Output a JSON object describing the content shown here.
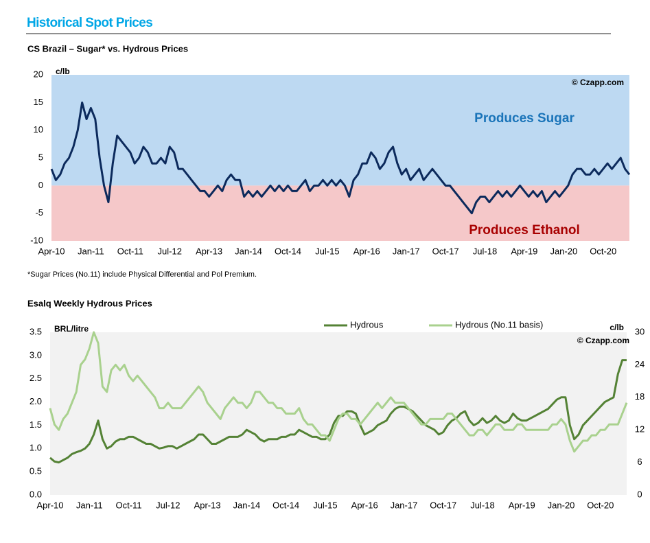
{
  "header": {
    "title": "Historical Spot Prices"
  },
  "footnote": "*Sugar Prices (No.11) include Physical Differential and Pol Premium.",
  "chart_data": [
    {
      "type": "line",
      "title": "CS Brazil – Sugar* vs. Hydrous Prices",
      "y_label": "c/lb",
      "watermark": "© Czapp.com",
      "annotations": [
        "Produces Sugar",
        "Produces Ethanol"
      ],
      "positive_color": "#bdd9f2",
      "negative_color": "#f5c8c9",
      "x": [
        "Apr-10",
        "May-10",
        "Jun-10",
        "Jul-10",
        "Aug-10",
        "Sep-10",
        "Oct-10",
        "Nov-10",
        "Dec-10",
        "Jan-11",
        "Feb-11",
        "Mar-11",
        "Apr-11",
        "May-11",
        "Jun-11",
        "Jul-11",
        "Aug-11",
        "Sep-11",
        "Oct-11",
        "Nov-11",
        "Dec-11",
        "Jan-12",
        "Feb-12",
        "Mar-12",
        "Apr-12",
        "May-12",
        "Jun-12",
        "Jul-12",
        "Aug-12",
        "Sep-12",
        "Oct-12",
        "Nov-12",
        "Dec-12",
        "Jan-13",
        "Feb-13",
        "Mar-13",
        "Apr-13",
        "May-13",
        "Jun-13",
        "Jul-13",
        "Aug-13",
        "Sep-13",
        "Oct-13",
        "Nov-13",
        "Dec-13",
        "Jan-14",
        "Feb-14",
        "Mar-14",
        "Apr-14",
        "May-14",
        "Jun-14",
        "Jul-14",
        "Aug-14",
        "Sep-14",
        "Oct-14",
        "Nov-14",
        "Dec-14",
        "Jan-15",
        "Feb-15",
        "Mar-15",
        "Apr-15",
        "May-15",
        "Jun-15",
        "Jul-15",
        "Aug-15",
        "Sep-15",
        "Oct-15",
        "Nov-15",
        "Dec-15",
        "Jan-16",
        "Feb-16",
        "Mar-16",
        "Apr-16",
        "May-16",
        "Jun-16",
        "Jul-16",
        "Aug-16",
        "Sep-16",
        "Oct-16",
        "Nov-16",
        "Dec-16",
        "Jan-17",
        "Feb-17",
        "Mar-17",
        "Apr-17",
        "May-17",
        "Jun-17",
        "Jul-17",
        "Aug-17",
        "Sep-17",
        "Oct-17",
        "Nov-17",
        "Dec-17",
        "Jan-18",
        "Feb-18",
        "Mar-18",
        "Apr-18",
        "May-18",
        "Jun-18",
        "Jul-18",
        "Aug-18",
        "Sep-18",
        "Oct-18",
        "Nov-18",
        "Dec-18",
        "Jan-19",
        "Feb-19",
        "Mar-19",
        "Apr-19",
        "May-19",
        "Jun-19",
        "Jul-19",
        "Aug-19",
        "Sep-19",
        "Oct-19",
        "Nov-19",
        "Dec-19",
        "Jan-20",
        "Feb-20",
        "Mar-20",
        "Apr-20",
        "May-20",
        "Jun-20",
        "Jul-20",
        "Aug-20",
        "Sep-20",
        "Oct-20",
        "Nov-20",
        "Dec-20",
        "Jan-21",
        "Feb-21",
        "Mar-21",
        "Apr-21"
      ],
      "values": [
        3,
        1,
        2,
        4,
        5,
        7,
        10,
        15,
        12,
        14,
        12,
        5,
        0,
        -3,
        4,
        9,
        8,
        7,
        6,
        4,
        5,
        7,
        6,
        4,
        4,
        5,
        4,
        7,
        6,
        3,
        3,
        2,
        1,
        0,
        -1,
        -1,
        -2,
        -1,
        0,
        -1,
        1,
        2,
        1,
        1,
        -2,
        -1,
        -2,
        -1,
        -2,
        -1,
        0,
        -1,
        0,
        -1,
        0,
        -1,
        -1,
        0,
        1,
        -1,
        0,
        0,
        1,
        0,
        1,
        0,
        1,
        0,
        -2,
        1,
        2,
        4,
        4,
        6,
        5,
        3,
        4,
        6,
        7,
        4,
        2,
        3,
        1,
        2,
        3,
        1,
        2,
        3,
        2,
        1,
        0,
        0,
        -1,
        -2,
        -3,
        -4,
        -5,
        -3,
        -2,
        -2,
        -3,
        -2,
        -1,
        -2,
        -1,
        -2,
        -1,
        0,
        -1,
        -2,
        -1,
        -2,
        -1,
        -3,
        -2,
        -1,
        -2,
        -1,
        0,
        2,
        3,
        3,
        2,
        2,
        3,
        2,
        3,
        4,
        3,
        4,
        5,
        3,
        2
      ],
      "color": "#0c2a5c",
      "xlim": [
        "Apr-10",
        "Apr-21"
      ],
      "xticks": [
        "Apr-10",
        "Jan-11",
        "Oct-11",
        "Jul-12",
        "Apr-13",
        "Jan-14",
        "Oct-14",
        "Jul-15",
        "Apr-16",
        "Jan-17",
        "Oct-17",
        "Jul-18",
        "Apr-19",
        "Jan-20",
        "Oct-20"
      ],
      "ylim": [
        -10,
        20
      ],
      "yticks": [
        -10,
        -5,
        0,
        5,
        10,
        15,
        20
      ]
    },
    {
      "type": "line",
      "title": "Esalq Weekly Hydrous Prices",
      "y_label": "BRL/litre",
      "y2_label": "c/lb",
      "watermark": "© Czapp.com",
      "background": "#f2f2f2",
      "x": [
        "Apr-10",
        "May-10",
        "Jun-10",
        "Jul-10",
        "Aug-10",
        "Sep-10",
        "Oct-10",
        "Nov-10",
        "Dec-10",
        "Jan-11",
        "Feb-11",
        "Mar-11",
        "Apr-11",
        "May-11",
        "Jun-11",
        "Jul-11",
        "Aug-11",
        "Sep-11",
        "Oct-11",
        "Nov-11",
        "Dec-11",
        "Jan-12",
        "Feb-12",
        "Mar-12",
        "Apr-12",
        "May-12",
        "Jun-12",
        "Jul-12",
        "Aug-12",
        "Sep-12",
        "Oct-12",
        "Nov-12",
        "Dec-12",
        "Jan-13",
        "Feb-13",
        "Mar-13",
        "Apr-13",
        "May-13",
        "Jun-13",
        "Jul-13",
        "Aug-13",
        "Sep-13",
        "Oct-13",
        "Nov-13",
        "Dec-13",
        "Jan-14",
        "Feb-14",
        "Mar-14",
        "Apr-14",
        "May-14",
        "Jun-14",
        "Jul-14",
        "Aug-14",
        "Sep-14",
        "Oct-14",
        "Nov-14",
        "Dec-14",
        "Jan-15",
        "Feb-15",
        "Mar-15",
        "Apr-15",
        "May-15",
        "Jun-15",
        "Jul-15",
        "Aug-15",
        "Sep-15",
        "Oct-15",
        "Nov-15",
        "Dec-15",
        "Jan-16",
        "Feb-16",
        "Mar-16",
        "Apr-16",
        "May-16",
        "Jun-16",
        "Jul-16",
        "Aug-16",
        "Sep-16",
        "Oct-16",
        "Nov-16",
        "Dec-16",
        "Jan-17",
        "Feb-17",
        "Mar-17",
        "Apr-17",
        "May-17",
        "Jun-17",
        "Jul-17",
        "Aug-17",
        "Sep-17",
        "Oct-17",
        "Nov-17",
        "Dec-17",
        "Jan-18",
        "Feb-18",
        "Mar-18",
        "Apr-18",
        "May-18",
        "Jun-18",
        "Jul-18",
        "Aug-18",
        "Sep-18",
        "Oct-18",
        "Nov-18",
        "Dec-18",
        "Jan-19",
        "Feb-19",
        "Mar-19",
        "Apr-19",
        "May-19",
        "Jun-19",
        "Jul-19",
        "Aug-19",
        "Sep-19",
        "Oct-19",
        "Nov-19",
        "Dec-19",
        "Jan-20",
        "Feb-20",
        "Mar-20",
        "Apr-20",
        "May-20",
        "Jun-20",
        "Jul-20",
        "Aug-20",
        "Sep-20",
        "Oct-20",
        "Nov-20",
        "Dec-20",
        "Jan-21",
        "Feb-21",
        "Mar-21",
        "Apr-21"
      ],
      "series": [
        {
          "name": "Hydrous",
          "color": "#548235",
          "values": [
            0.8,
            0.72,
            0.7,
            0.75,
            0.8,
            0.88,
            0.92,
            0.95,
            1.0,
            1.1,
            1.3,
            1.6,
            1.2,
            1.0,
            1.05,
            1.15,
            1.2,
            1.2,
            1.25,
            1.25,
            1.2,
            1.15,
            1.1,
            1.1,
            1.05,
            1.0,
            1.02,
            1.05,
            1.05,
            1.0,
            1.05,
            1.1,
            1.15,
            1.2,
            1.3,
            1.3,
            1.2,
            1.1,
            1.1,
            1.15,
            1.2,
            1.25,
            1.25,
            1.25,
            1.3,
            1.4,
            1.35,
            1.3,
            1.2,
            1.15,
            1.2,
            1.2,
            1.2,
            1.25,
            1.25,
            1.3,
            1.3,
            1.4,
            1.35,
            1.3,
            1.25,
            1.25,
            1.2,
            1.2,
            1.3,
            1.55,
            1.7,
            1.7,
            1.8,
            1.8,
            1.75,
            1.5,
            1.3,
            1.35,
            1.4,
            1.5,
            1.55,
            1.6,
            1.75,
            1.85,
            1.9,
            1.9,
            1.85,
            1.8,
            1.7,
            1.6,
            1.5,
            1.45,
            1.4,
            1.3,
            1.35,
            1.5,
            1.6,
            1.65,
            1.75,
            1.8,
            1.6,
            1.5,
            1.55,
            1.65,
            1.55,
            1.6,
            1.7,
            1.6,
            1.55,
            1.6,
            1.75,
            1.65,
            1.6,
            1.6,
            1.65,
            1.7,
            1.75,
            1.8,
            1.85,
            1.95,
            2.05,
            2.1,
            2.1,
            1.5,
            1.2,
            1.3,
            1.5,
            1.6,
            1.7,
            1.8,
            1.9,
            2.0,
            2.05,
            2.1,
            2.6,
            2.9,
            2.9
          ]
        },
        {
          "name": "Hydrous (No.11 basis)",
          "color": "#a9d18e",
          "axis": "y2",
          "values": [
            16,
            13,
            12,
            14,
            15,
            17,
            19,
            24,
            25,
            27,
            30,
            28,
            20,
            19,
            23,
            24,
            23,
            24,
            22,
            21,
            22,
            21,
            20,
            19,
            18,
            16,
            16,
            17,
            16,
            16,
            16,
            17,
            18,
            19,
            20,
            19,
            17,
            16,
            15,
            14,
            16,
            17,
            18,
            17,
            17,
            16,
            17,
            19,
            19,
            18,
            17,
            17,
            16,
            16,
            15,
            15,
            15,
            16,
            14,
            13,
            13,
            12,
            11,
            11,
            10,
            12,
            14,
            15,
            15,
            14,
            14,
            13,
            14,
            15,
            16,
            17,
            16,
            17,
            18,
            17,
            17,
            17,
            16,
            15,
            14,
            13,
            13,
            14,
            14,
            14,
            14,
            15,
            15,
            14,
            13,
            12,
            11,
            11,
            12,
            12,
            11,
            12,
            13,
            13,
            12,
            12,
            12,
            13,
            13,
            12,
            12,
            12,
            12,
            12,
            12,
            13,
            13,
            14,
            13,
            10,
            8,
            9,
            10,
            10,
            11,
            11,
            12,
            12,
            13,
            13,
            13,
            15,
            17
          ]
        }
      ],
      "xlim": [
        "Apr-10",
        "Apr-21"
      ],
      "xticks": [
        "Apr-10",
        "Jan-11",
        "Oct-11",
        "Jul-12",
        "Apr-13",
        "Jan-14",
        "Oct-14",
        "Jul-15",
        "Apr-16",
        "Jan-17",
        "Oct-17",
        "Jul-18",
        "Apr-19",
        "Jan-20",
        "Oct-20"
      ],
      "ylim": [
        0,
        3.5
      ],
      "yticks": [
        {
          "value": 0,
          "label": "0.0"
        },
        0.5,
        {
          "value": 1,
          "label": "1.0"
        },
        1.5,
        {
          "value": 2,
          "label": "2.0"
        },
        2.5,
        {
          "value": 3,
          "label": "3.0"
        },
        3.5
      ],
      "y2lim": [
        0,
        30
      ],
      "y2ticks": [
        0,
        6,
        12,
        18,
        24,
        30
      ]
    }
  ]
}
